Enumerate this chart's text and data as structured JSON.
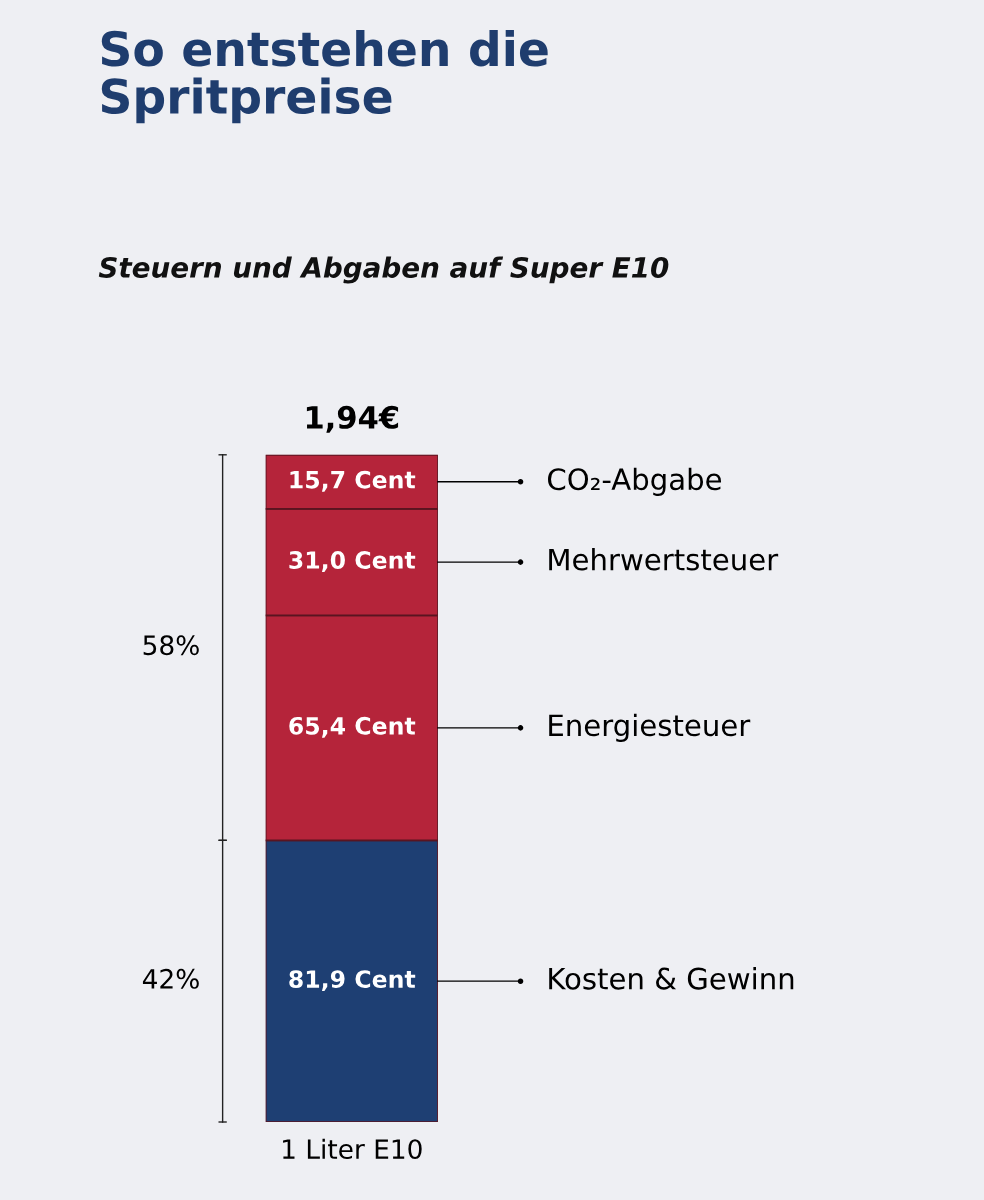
{
  "chart_data": {
    "type": "bar",
    "title": "So entstehen die\nSpritpreise",
    "subtitle": "Steuern und Abgaben auf Super E10",
    "categories": [
      "1 Liter E10"
    ],
    "stacked": true,
    "tick_labels": "x",
    "legend": false,
    "series": [
      {
        "name": "Kosten & Gewinn",
        "color": "#1e3f73",
        "values": [
          81.9
        ],
        "value_labels": [
          "81,9 Cent"
        ]
      },
      {
        "name": "Energiesteuer",
        "color": "#b5243a",
        "values": [
          65.4
        ],
        "value_labels": [
          "65,4 Cent"
        ]
      },
      {
        "name": "Mehrwertsteuer",
        "color": "#b5243a",
        "values": [
          31.0
        ],
        "value_labels": [
          "31,0 Cent"
        ]
      },
      {
        "name": "CO₂-Abgabe",
        "color": "#b5243a",
        "values": [
          15.7
        ],
        "value_labels": [
          "15,7 Cent"
        ]
      }
    ],
    "annotations": [
      "1,94€",
      "58%",
      "42%"
    ]
  }
}
